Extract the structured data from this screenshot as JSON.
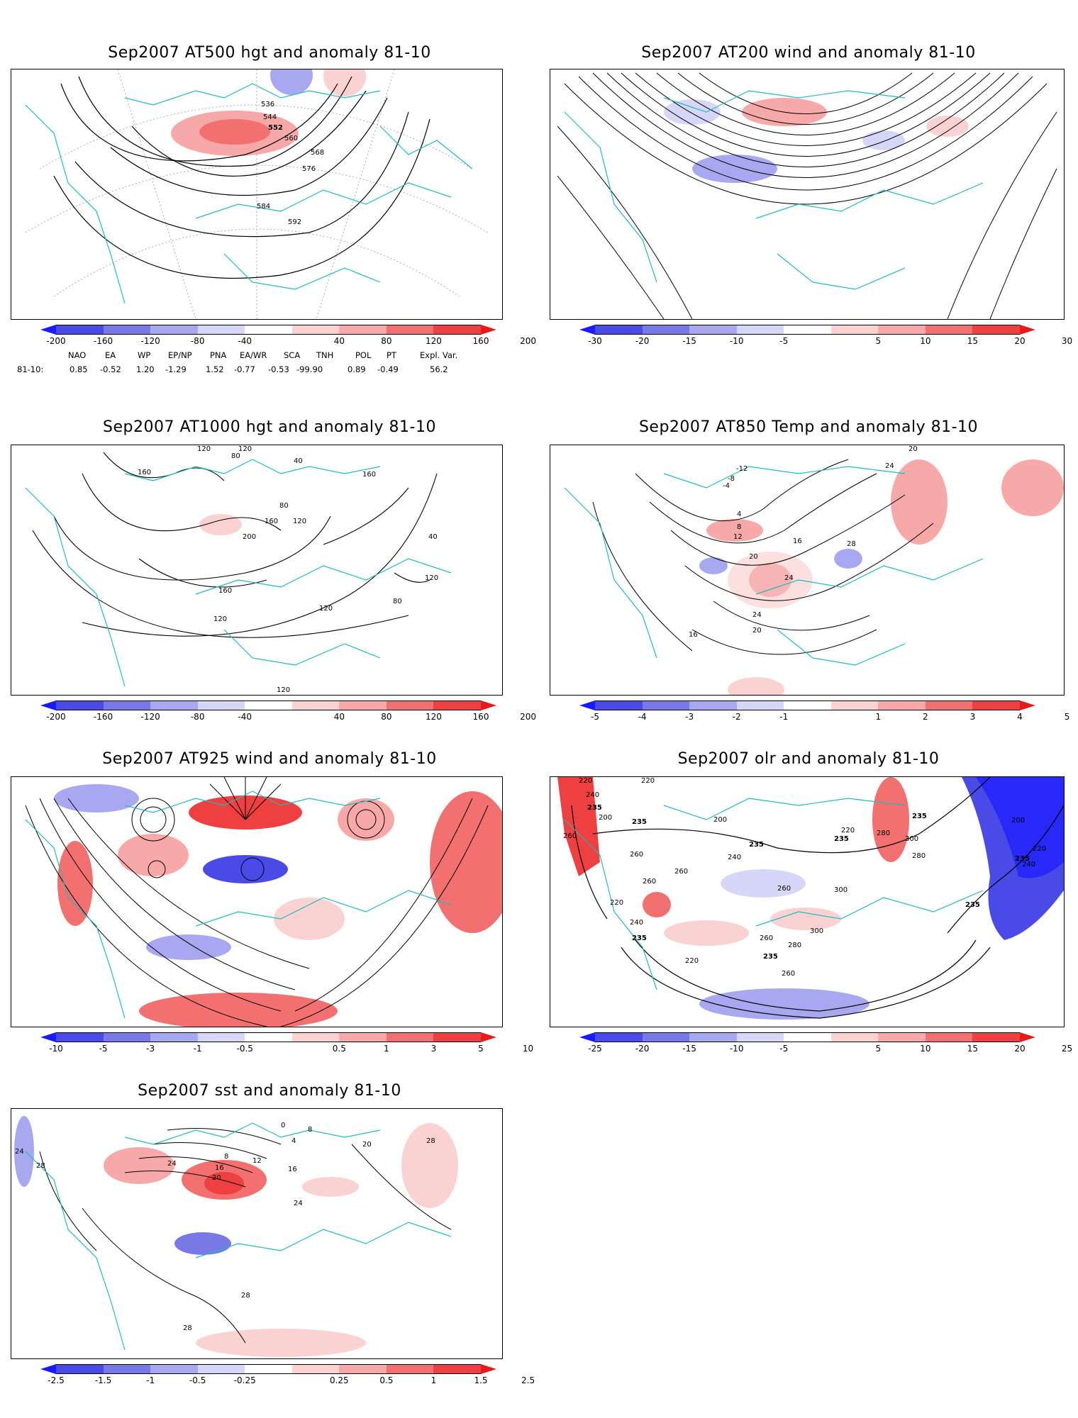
{
  "panels": [
    {
      "id": "p1",
      "title": "Sep2007 AT500 hgt and anomaly 81-10",
      "contour_labels": [
        "536",
        "544",
        "552",
        "560",
        "568",
        "576",
        "584",
        "592"
      ],
      "colorbar": {
        "ticks": [
          "-200",
          "-160",
          "-120",
          "-80",
          "-40",
          "40",
          "80",
          "120",
          "160",
          "200"
        ],
        "colors": [
          "#1a1aff",
          "#4a4ae6",
          "#7878e6",
          "#a8a8f0",
          "#d6d6f8",
          "#ffffff",
          "#fbd2d2",
          "#f7a8a8",
          "#f27070",
          "#ee4040",
          "#e61a1a"
        ]
      }
    },
    {
      "id": "p2",
      "title": "Sep2007 AT200 wind and anomaly 81-10",
      "contour_labels": [],
      "colorbar": {
        "ticks": [
          "-30",
          "-20",
          "-15",
          "-10",
          "-5",
          "5",
          "10",
          "15",
          "20",
          "30"
        ],
        "colors": [
          "#1a1aff",
          "#4a4ae6",
          "#7878e6",
          "#a8a8f0",
          "#d6d6f8",
          "#ffffff",
          "#fbd2d2",
          "#f7a8a8",
          "#f27070",
          "#ee4040",
          "#e61a1a"
        ]
      }
    },
    {
      "id": "p3",
      "title": "Sep2007 AT1000 hgt and anomaly 81-10",
      "contour_labels": [
        "120",
        "120",
        "80",
        "40",
        "160",
        "160",
        "160",
        "80",
        "120",
        "200",
        "40",
        "120",
        "160",
        "80",
        "120",
        "120",
        "120"
      ],
      "colorbar": {
        "ticks": [
          "-200",
          "-160",
          "-120",
          "-80",
          "-40",
          "40",
          "80",
          "120",
          "160",
          "200"
        ],
        "colors": [
          "#1a1aff",
          "#4a4ae6",
          "#7878e6",
          "#a8a8f0",
          "#d6d6f8",
          "#ffffff",
          "#fbd2d2",
          "#f7a8a8",
          "#f27070",
          "#ee4040",
          "#e61a1a"
        ]
      }
    },
    {
      "id": "p4",
      "title": "Sep2007 AT850 Temp and anomaly 81-10",
      "contour_labels": [
        "-12",
        "-8",
        "-4",
        "4",
        "8",
        "12",
        "16",
        "20",
        "24",
        "28",
        "24",
        "20",
        "24",
        "16",
        "20"
      ],
      "colorbar": {
        "ticks": [
          "-5",
          "-4",
          "-3",
          "-2",
          "-1",
          "1",
          "2",
          "3",
          "4",
          "5"
        ],
        "colors": [
          "#1a1aff",
          "#4a4ae6",
          "#7878e6",
          "#a8a8f0",
          "#d6d6f8",
          "#ffffff",
          "#fbd2d2",
          "#f7a8a8",
          "#f27070",
          "#ee4040",
          "#e61a1a"
        ]
      }
    },
    {
      "id": "p5",
      "title": "Sep2007 AT925 wind and anomaly 81-10",
      "contour_labels": [],
      "colorbar": {
        "ticks": [
          "-10",
          "-5",
          "-3",
          "-1",
          "-0.5",
          "0.5",
          "1",
          "3",
          "5",
          "10"
        ],
        "colors": [
          "#1a1aff",
          "#4a4ae6",
          "#7878e6",
          "#a8a8f0",
          "#d6d6f8",
          "#ffffff",
          "#fbd2d2",
          "#f7a8a8",
          "#f27070",
          "#ee4040",
          "#e61a1a"
        ]
      }
    },
    {
      "id": "p6",
      "title": "Sep2007 olr and anomaly 81-10",
      "contour_labels": [
        "220",
        "240",
        "235",
        "260",
        "200",
        "235",
        "220",
        "235",
        "235",
        "280",
        "300",
        "260",
        "240",
        "220",
        "260",
        "200",
        "235",
        "280",
        "260",
        "300",
        "235",
        "220",
        "260",
        "240",
        "235",
        "200",
        "220",
        "235",
        "240",
        "260",
        "280",
        "300",
        "260",
        "235",
        "220"
      ],
      "colorbar": {
        "ticks": [
          "-25",
          "-20",
          "-15",
          "-10",
          "-5",
          "5",
          "10",
          "15",
          "20",
          "25"
        ],
        "colors": [
          "#1a1aff",
          "#4a4ae6",
          "#7878e6",
          "#a8a8f0",
          "#d6d6f8",
          "#ffffff",
          "#fbd2d2",
          "#f7a8a8",
          "#f27070",
          "#ee4040",
          "#e61a1a"
        ]
      }
    },
    {
      "id": "p7",
      "title": "Sep2007 sst and anomaly 81-10",
      "contour_labels": [
        "24",
        "28",
        "24",
        "0",
        "4",
        "8",
        "12",
        "16",
        "20",
        "16",
        "8",
        "20",
        "24",
        "28",
        "28",
        "28"
      ],
      "colorbar": {
        "ticks": [
          "-2.5",
          "-1.5",
          "-1",
          "-0.5",
          "-0.25",
          "0.25",
          "0.5",
          "1",
          "1.5",
          "2.5"
        ],
        "colors": [
          "#1a1aff",
          "#4a4ae6",
          "#7878e6",
          "#a8a8f0",
          "#d6d6f8",
          "#ffffff",
          "#fbd2d2",
          "#f7a8a8",
          "#f27070",
          "#ee4040",
          "#e61a1a"
        ]
      }
    }
  ],
  "teleconnections": {
    "headers": [
      "NAO",
      "EA",
      "WP",
      "EP/NP",
      "PNA",
      "EA/WR",
      "SCA",
      "TNH",
      "POL",
      "PT",
      "Expl. Var."
    ],
    "row_label": "81-10:",
    "values": [
      "0.85",
      "-0.52",
      "1.20",
      "-1.29",
      "1.52",
      "-0.77",
      "-0.53",
      "-99.90",
      "0.89",
      "-0.49",
      "56.2"
    ]
  }
}
